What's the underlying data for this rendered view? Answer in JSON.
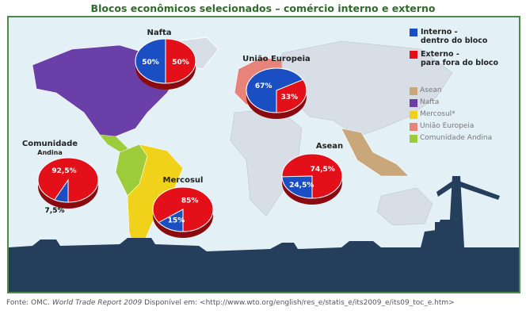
{
  "title": "Blocos econômicos selecionados – comércio interno e externo",
  "legend": {
    "interno": {
      "label1": "Interno -",
      "label2": "dentro do bloco",
      "color": "#1a4fc4"
    },
    "externo": {
      "label1": "Externo -",
      "label2": "para fora do bloco",
      "color": "#e3101a"
    },
    "blocs": [
      {
        "label": "Asean",
        "color": "#c9a77a"
      },
      {
        "label": "Nafta",
        "color": "#6a3fa8"
      },
      {
        "label": "Mercosul*",
        "color": "#f0d21a"
      },
      {
        "label": "União Europeia",
        "color": "#e8837a"
      },
      {
        "label": "Comunidade Andina",
        "color": "#9ccc3a"
      }
    ]
  },
  "chart_data": {
    "type": "pie",
    "pies": [
      {
        "name": "Nafta",
        "interno": 50,
        "externo": 50,
        "interno_label": "50%",
        "externo_label": "50%"
      },
      {
        "name": "União Europeia",
        "interno": 67,
        "externo": 33,
        "interno_label": "67%",
        "externo_label": "33%"
      },
      {
        "name": "Comunidade Andina",
        "interno": 7.5,
        "externo": 92.5,
        "interno_label": "7,5%",
        "externo_label": "92,5%"
      },
      {
        "name": "Mercosul",
        "interno": 15,
        "externo": 85,
        "interno_label": "15%",
        "externo_label": "85%"
      },
      {
        "name": "Asean",
        "interno": 24.5,
        "externo": 74.5,
        "interno_label": "24,5%",
        "externo_label": "74,5%"
      }
    ]
  },
  "labels": {
    "andina_line1": "Comunidade",
    "andina_line2": "Andina"
  },
  "source": {
    "prefix": "Fonte: OMC.",
    "report": "World Trade Report 2009",
    "suffix": "Disponível em: <http://www.wto.org/english/res_e/statis_e/its2009_e/its09_toc_e.htm>"
  }
}
